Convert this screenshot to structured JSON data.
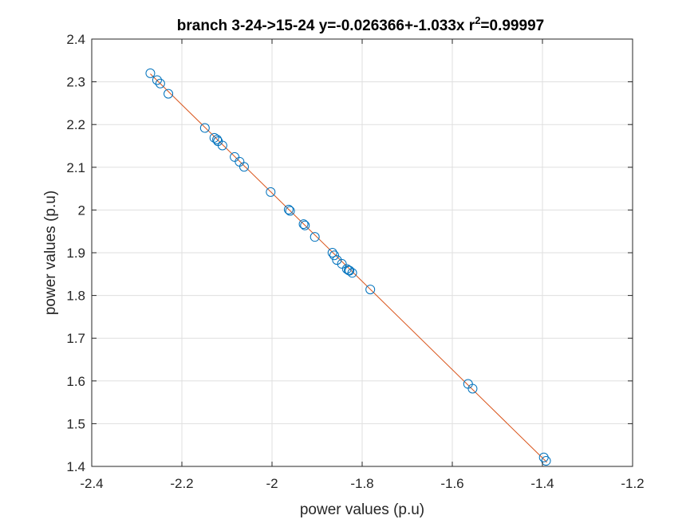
{
  "chart_data": {
    "type": "scatter",
    "title": {
      "prefix": "branch 3-24->15-24 y=-0.026366+-1.033x r",
      "superscript": "2",
      "suffix": "=0.99997"
    },
    "xlabel": "power values (p.u)",
    "ylabel": "power values (p.u)",
    "xlim": [
      -2.4,
      -1.2
    ],
    "ylim": [
      1.4,
      2.4
    ],
    "xticks": [
      -2.4,
      -2.2,
      -2.0,
      -1.8,
      -1.6,
      -1.4,
      -1.2
    ],
    "xtick_labels": [
      "-2.4",
      "-2.2",
      "-2",
      "-1.8",
      "-1.6",
      "-1.4",
      "-1.2"
    ],
    "yticks": [
      1.4,
      1.5,
      1.6,
      1.7,
      1.8,
      1.9,
      2.0,
      2.1,
      2.2,
      2.3,
      2.4
    ],
    "ytick_labels": [
      "1.4",
      "1.5",
      "1.6",
      "1.7",
      "1.8",
      "1.9",
      "2",
      "2.1",
      "2.2",
      "2.3",
      "2.4"
    ],
    "grid": true,
    "fit_line": {
      "intercept": -0.026366,
      "slope": -1.033,
      "x_range": [
        -2.27,
        -1.39
      ],
      "color": "#D95319"
    },
    "marker_color": "#0072BD",
    "points": [
      {
        "x": -2.27,
        "y": 2.32
      },
      {
        "x": -2.255,
        "y": 2.304
      },
      {
        "x": -2.248,
        "y": 2.296
      },
      {
        "x": -2.23,
        "y": 2.272
      },
      {
        "x": -2.149,
        "y": 2.192
      },
      {
        "x": -2.128,
        "y": 2.169
      },
      {
        "x": -2.122,
        "y": 2.165
      },
      {
        "x": -2.12,
        "y": 2.161
      },
      {
        "x": -2.11,
        "y": 2.151
      },
      {
        "x": -2.083,
        "y": 2.124
      },
      {
        "x": -2.072,
        "y": 2.113
      },
      {
        "x": -2.062,
        "y": 2.101
      },
      {
        "x": -2.003,
        "y": 2.042
      },
      {
        "x": -1.963,
        "y": 2.001
      },
      {
        "x": -1.96,
        "y": 1.998
      },
      {
        "x": -1.93,
        "y": 1.967
      },
      {
        "x": -1.927,
        "y": 1.964
      },
      {
        "x": -1.905,
        "y": 1.937
      },
      {
        "x": -1.866,
        "y": 1.9
      },
      {
        "x": -1.862,
        "y": 1.894
      },
      {
        "x": -1.856,
        "y": 1.883
      },
      {
        "x": -1.845,
        "y": 1.874
      },
      {
        "x": -1.834,
        "y": 1.862
      },
      {
        "x": -1.83,
        "y": 1.859
      },
      {
        "x": -1.828,
        "y": 1.858
      },
      {
        "x": -1.822,
        "y": 1.853
      },
      {
        "x": -1.782,
        "y": 1.814
      },
      {
        "x": -1.565,
        "y": 1.593
      },
      {
        "x": -1.555,
        "y": 1.582
      },
      {
        "x": -1.397,
        "y": 1.421
      },
      {
        "x": -1.392,
        "y": 1.413
      }
    ]
  }
}
